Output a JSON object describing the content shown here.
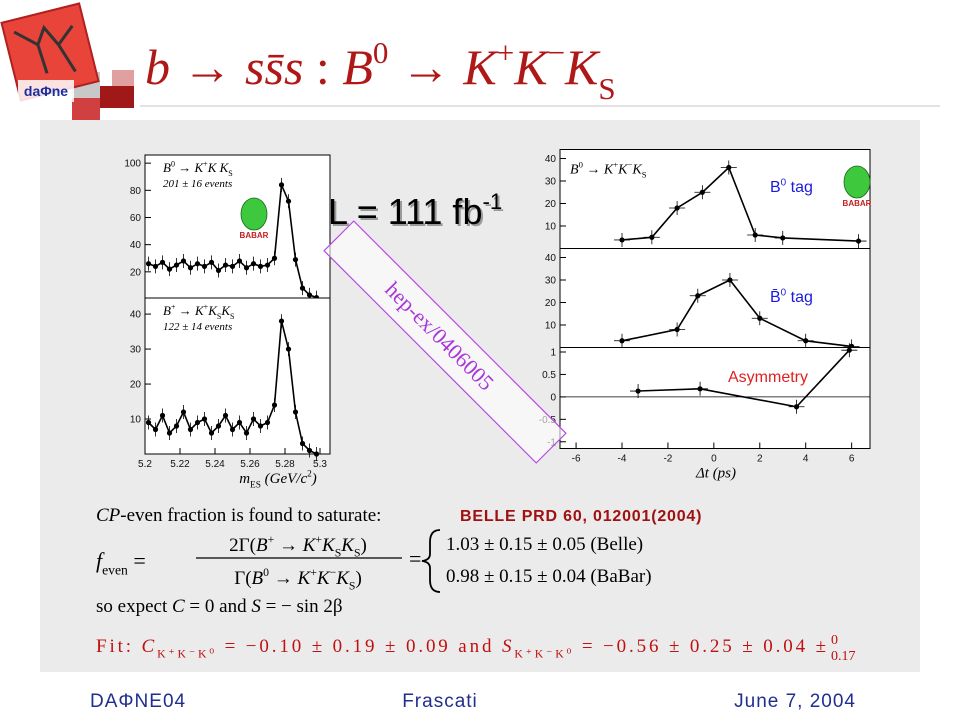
{
  "logo": "daΦne",
  "badge": "BABAR",
  "title": [
    "b",
    " → ",
    "s",
    "s̄",
    "s",
    " :  ",
    "B",
    "0",
    " → ",
    "K",
    "+",
    "K",
    "−",
    "K",
    "S"
  ],
  "luminosity": [
    "L = 111 fb",
    "-1"
  ],
  "stamp": "hep-ex/0406005",
  "plots": [
    {
      "label": [
        "B",
        "0",
        " → ",
        "K",
        "+",
        "K",
        " K",
        "S"
      ],
      "events": "201 ± 16 events",
      "xlim": [
        5.2,
        5.3
      ],
      "ylim": [
        0,
        106
      ],
      "yticks": [
        20,
        40,
        60,
        80,
        100
      ],
      "x": [
        5.202,
        5.206,
        5.21,
        5.214,
        5.218,
        5.222,
        5.226,
        5.23,
        5.234,
        5.238,
        5.242,
        5.246,
        5.25,
        5.254,
        5.258,
        5.262,
        5.266,
        5.27,
        5.274,
        5.278,
        5.282,
        5.286,
        5.29,
        5.294,
        5.298
      ],
      "values": [
        26,
        24,
        27,
        22,
        25,
        28,
        23,
        26,
        24,
        27,
        21,
        25,
        24,
        28,
        23,
        26,
        24,
        25,
        30,
        84,
        72,
        29,
        8,
        3,
        1
      ]
    },
    {
      "label": [
        "B",
        "+",
        " → ",
        "K",
        "+",
        "K",
        "S",
        "K",
        "S"
      ],
      "events": "122 ± 14 events",
      "xlim": [
        5.2,
        5.3
      ],
      "ylim": [
        0,
        44.6
      ],
      "yticks": [
        10,
        20,
        30,
        40
      ],
      "xticks": [
        5.2,
        5.22,
        5.24,
        5.26,
        5.28,
        5.3
      ],
      "xlabel": [
        "m",
        "ES",
        " (GeV/c",
        "2",
        ")"
      ],
      "x": [
        5.202,
        5.206,
        5.21,
        5.214,
        5.218,
        5.222,
        5.226,
        5.23,
        5.234,
        5.238,
        5.242,
        5.246,
        5.25,
        5.254,
        5.258,
        5.262,
        5.266,
        5.27,
        5.274,
        5.278,
        5.282,
        5.286,
        5.29,
        5.294,
        5.298
      ],
      "values": [
        9,
        7,
        11,
        6,
        8,
        12,
        7,
        9,
        10,
        6,
        8,
        11,
        7,
        9,
        6,
        10,
        8,
        9,
        14,
        38,
        30,
        12,
        3,
        1,
        0
      ]
    },
    {
      "label": [
        "B",
        "0",
        " → ",
        "K",
        "+",
        "K",
        "−",
        "K",
        "S"
      ],
      "tag": [
        "B",
        "0",
        " tag"
      ],
      "xlim": [
        -6.7,
        6.8
      ],
      "ylim": [
        0,
        44
      ],
      "yticks": [
        10,
        20,
        30,
        40
      ],
      "x": [
        -4,
        -2.7,
        -1.6,
        -0.5,
        0.65,
        1.8,
        3,
        6.3
      ],
      "values": [
        3.8,
        5,
        18,
        25,
        36,
        6,
        4.7,
        3.3
      ]
    },
    {
      "tag": [
        "B̄",
        "0",
        " tag"
      ],
      "xlim": [
        -6.7,
        6.8
      ],
      "ylim": [
        0,
        44
      ],
      "yticks": [
        10,
        20,
        30,
        40
      ],
      "x": [
        -4,
        -1.6,
        -0.7,
        0.7,
        2,
        4,
        6
      ],
      "values": [
        3,
        8,
        23,
        30,
        13,
        3,
        0.5
      ]
    },
    {
      "tag": [
        "Asymmetry"
      ],
      "xlim": [
        -6.7,
        6.8
      ],
      "ylim": [
        -1.15,
        1.1
      ],
      "yticks": [
        -1,
        -0.5,
        0,
        0.5,
        1
      ],
      "xticks": [
        -6,
        -4,
        -2,
        0,
        2,
        4,
        6
      ],
      "xlabel": [
        "Δt (ps)"
      ],
      "x": [
        -3.3,
        -0.6,
        3.6,
        5.9
      ],
      "values": [
        0.13,
        0.18,
        -0.22,
        1.04
      ]
    }
  ],
  "reference": "BELLE PRD 60, 012001(2004)",
  "cp_line": [
    "CP",
    "-even fraction is found to saturate:"
  ],
  "formula": {
    "lhs": [
      "f",
      "even",
      " ="
    ],
    "numerator": [
      "2Γ(",
      "B",
      "+",
      " → ",
      "K",
      "+",
      "K",
      "S",
      "K",
      "S",
      ")"
    ],
    "denominator": [
      "Γ(",
      "B",
      "0",
      " → ",
      "K",
      "+",
      "K",
      "−",
      "K",
      "S",
      ")"
    ],
    "eq": "=",
    "results": [
      "1.03 ± 0.15 ± 0.05 (Belle)",
      "0.98 ± 0.15 ± 0.04 (BaBar)"
    ]
  },
  "expect": [
    "so expect ",
    "C",
    " = 0 and ",
    "S",
    " = − sin 2β"
  ],
  "fit": {
    "parts": [
      "Fit: ",
      "C",
      "K⁺K⁻K⁰",
      " = −0.10 ± 0.19 ± 0.09  and  ",
      "S",
      "K⁺K⁻K⁰",
      " = −0.56 ± 0.25 ± 0.04 ±"
    ],
    "upper": "0",
    "lower": "0.17"
  },
  "footer": [
    "DAΦNE04",
    "Frascati",
    "June 7, 2004"
  ]
}
